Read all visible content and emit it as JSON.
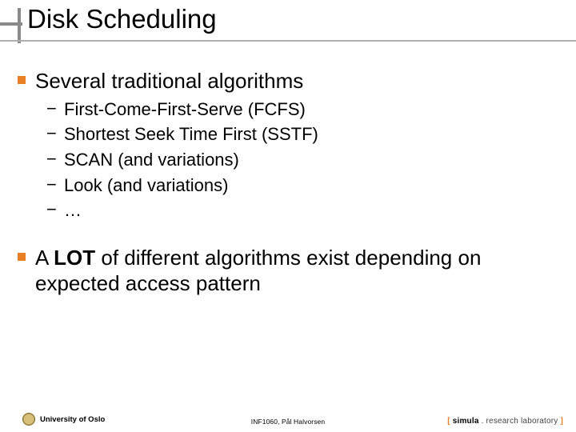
{
  "colors": {
    "accent": "#e97f24",
    "title_bar": "#8a8a8a",
    "underline": "#b0b0b0"
  },
  "title": "Disk Scheduling",
  "bullets": [
    {
      "text": "Several traditional algorithms",
      "subs": [
        "First-Come-First-Serve (FCFS)",
        "Shortest Seek Time First (SSTF)",
        "SCAN (and variations)",
        "Look (and variations)",
        "…"
      ]
    },
    {
      "text_pre": "A ",
      "text_bold": "LOT",
      "text_post": " of different algorithms exist depending on expected access pattern",
      "subs": []
    }
  ],
  "footer": {
    "left": "University of Oslo",
    "center": "INF1060, Pål Halvorsen",
    "right_bracket_open": "[ ",
    "right_simula": "simula",
    "right_rest": " . research laboratory ",
    "right_bracket_close": "]",
    "bracket_color": "#e97f24"
  }
}
